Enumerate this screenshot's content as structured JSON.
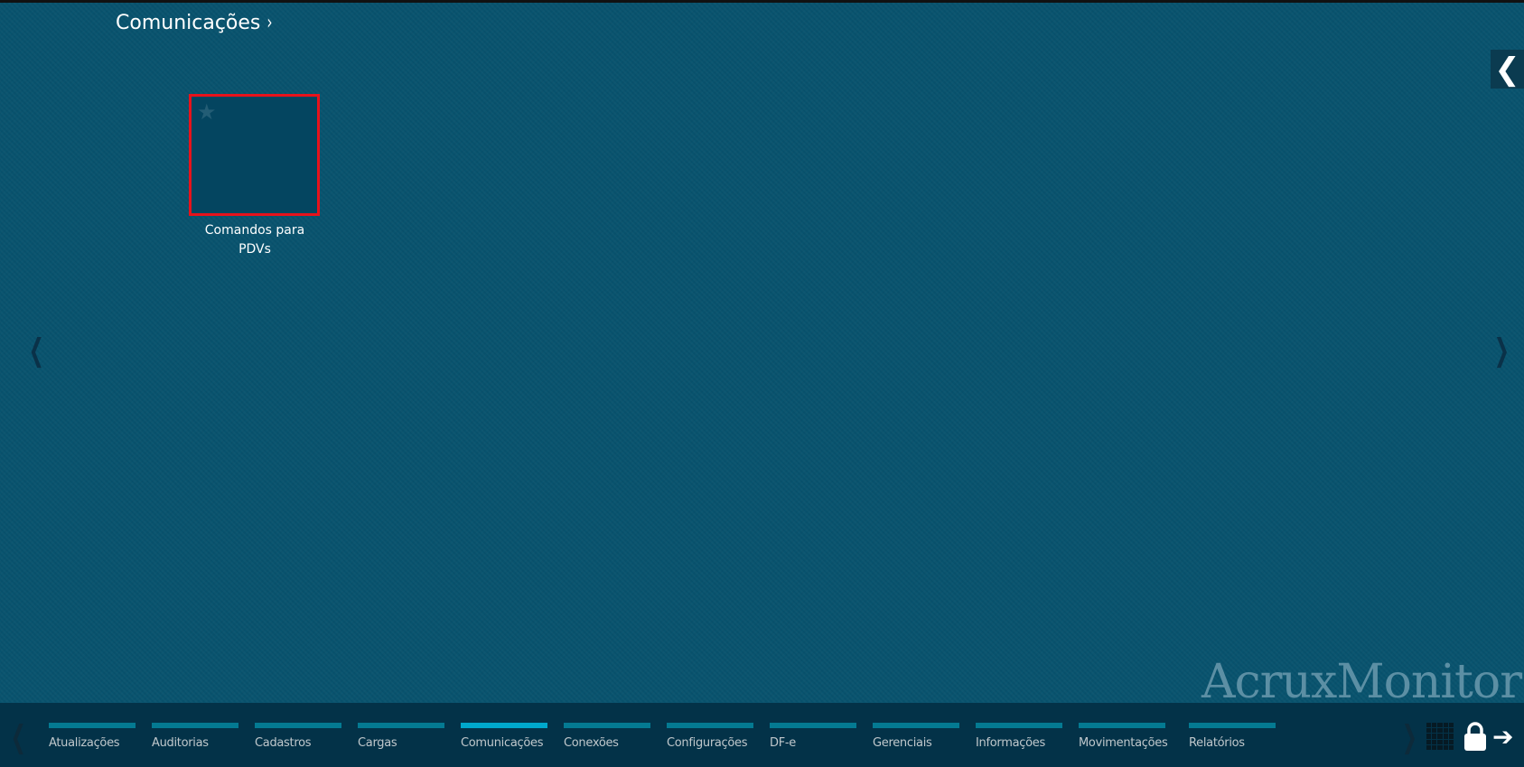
{
  "header": {
    "title": "Comunicações",
    "chevron": "›"
  },
  "tiles": [
    {
      "label_line1": "Comandos para",
      "label_line2": "PDVs",
      "icon": "star-icon"
    }
  ],
  "nav": {
    "back_icon": "chevron-left-icon",
    "prev": "❮",
    "next": "❯",
    "back": "❮"
  },
  "watermark": "AcruxMonitor",
  "bottom_tabs": [
    {
      "label": "Atualizações"
    },
    {
      "label": "Auditorias"
    },
    {
      "label": "Cadastros"
    },
    {
      "label": "Cargas"
    },
    {
      "label": "Comunicações",
      "active": true
    },
    {
      "label": "Conexões"
    },
    {
      "label": "Configurações"
    },
    {
      "label": "DF-e"
    },
    {
      "label": "Gerenciais"
    },
    {
      "label": "Informações"
    },
    {
      "label": "Movimentações"
    },
    {
      "label": "Relatórios"
    }
  ],
  "colors": {
    "background": "#08536e",
    "bottom_bar": "#033248",
    "tab_bar": "#047a92",
    "tab_active": "#00a8cc",
    "tile_border": "#e8121b"
  },
  "controls": {
    "arrow": "➔"
  }
}
